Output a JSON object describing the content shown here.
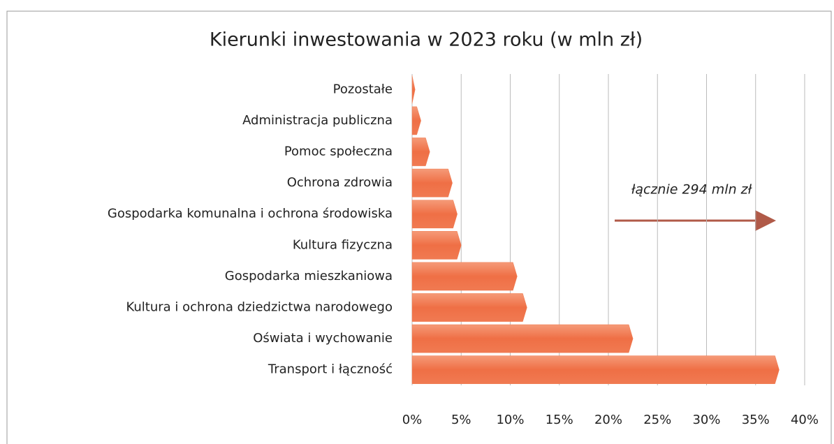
{
  "chart_data": {
    "type": "hbar",
    "title": "Kierunki inwestowania w 2023 roku (w mln zł)",
    "categories": [
      "Pozostałe",
      "Administracja publiczna",
      "Pomoc społeczna",
      "Ochrona zdrowia",
      "Gospodarka komunalna i ochrona środowiska",
      "Kultura fizyczna",
      "Gospodarka mieszkaniowa",
      "Kultura i ochrona dziedzictwa narodowego",
      "Oświata i wychowanie",
      "Transport i łączność"
    ],
    "values": [
      0.3,
      0.9,
      1.8,
      4.1,
      4.6,
      5.0,
      10.7,
      11.7,
      22.5,
      37.4
    ],
    "color": "#f07a4f",
    "xlim": [
      0,
      40
    ],
    "xticks": [
      {
        "value": 0,
        "label": "0%"
      },
      {
        "value": 5,
        "label": "5%"
      },
      {
        "value": 10,
        "label": "10%"
      },
      {
        "value": 15,
        "label": "15%"
      },
      {
        "value": 20,
        "label": "20%"
      },
      {
        "value": 25,
        "label": "25%"
      },
      {
        "value": 30,
        "label": "30%"
      },
      {
        "value": 35,
        "label": "35%"
      },
      {
        "value": 40,
        "label": "40%"
      }
    ],
    "grid": true,
    "annotation": "łącznie 294 mln zł"
  }
}
